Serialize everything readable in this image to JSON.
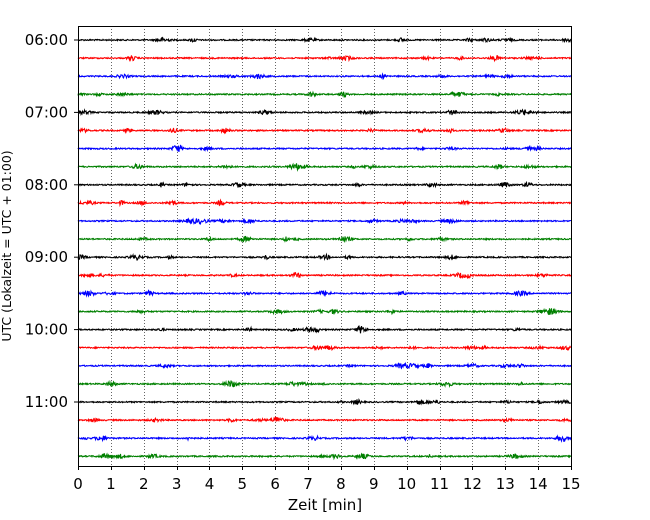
{
  "chart_data": {
    "type": "line",
    "title": "",
    "xlabel": "Zeit  [min]",
    "ylabel": "UTC (Lokalzeit = UTC + 01:00)",
    "xlim": [
      0,
      15
    ],
    "x_ticks": [
      "0",
      "1",
      "2",
      "3",
      "4",
      "5",
      "6",
      "7",
      "8",
      "9",
      "10",
      "11",
      "12",
      "13",
      "14",
      "15"
    ],
    "grid": "vertical dotted at each minute",
    "trace_interval_minutes": 15,
    "hour_labels": [
      "06:00",
      "07:00",
      "08:00",
      "09:00",
      "10:00",
      "11:00"
    ],
    "color_cycle": [
      "#000000",
      "#ff0000",
      "#0000ff",
      "#008000"
    ],
    "traces": [
      {
        "start": "06:00",
        "color": "#000000"
      },
      {
        "start": "06:15",
        "color": "#ff0000"
      },
      {
        "start": "06:30",
        "color": "#0000ff"
      },
      {
        "start": "06:45",
        "color": "#008000"
      },
      {
        "start": "07:00",
        "color": "#000000"
      },
      {
        "start": "07:15",
        "color": "#ff0000"
      },
      {
        "start": "07:30",
        "color": "#0000ff"
      },
      {
        "start": "07:45",
        "color": "#008000"
      },
      {
        "start": "08:00",
        "color": "#000000"
      },
      {
        "start": "08:15",
        "color": "#ff0000"
      },
      {
        "start": "08:30",
        "color": "#0000ff"
      },
      {
        "start": "08:45",
        "color": "#008000"
      },
      {
        "start": "09:00",
        "color": "#000000"
      },
      {
        "start": "09:15",
        "color": "#ff0000"
      },
      {
        "start": "09:30",
        "color": "#0000ff"
      },
      {
        "start": "09:45",
        "color": "#008000"
      },
      {
        "start": "10:00",
        "color": "#000000"
      },
      {
        "start": "10:15",
        "color": "#ff0000"
      },
      {
        "start": "10:30",
        "color": "#0000ff"
      },
      {
        "start": "10:45",
        "color": "#008000"
      },
      {
        "start": "11:00",
        "color": "#000000"
      },
      {
        "start": "11:15",
        "color": "#ff0000"
      },
      {
        "start": "11:30",
        "color": "#0000ff"
      },
      {
        "start": "11:45",
        "color": "#008000"
      }
    ]
  }
}
